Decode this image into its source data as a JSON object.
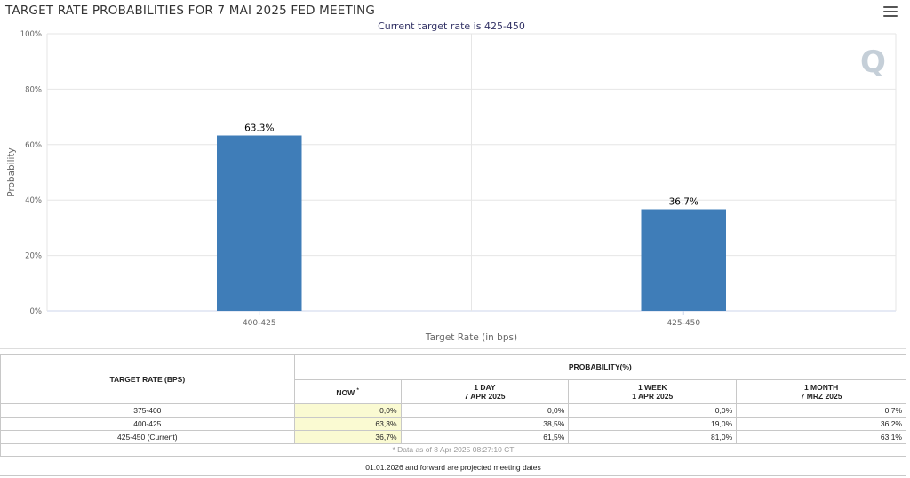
{
  "header": {
    "title": "TARGET RATE PROBABILITIES FOR 7 MAI 2025 FED MEETING",
    "subtitle": "Current target rate is 425-450",
    "menu_icon": "hamburger-menu-icon",
    "logo_letter": "Q"
  },
  "chart_data": {
    "type": "bar",
    "categories": [
      "400-425",
      "425-450"
    ],
    "values": [
      63.3,
      36.7
    ],
    "data_labels": [
      "63.3%",
      "36.7%"
    ],
    "title": "TARGET RATE PROBABILITIES FOR 7 MAI 2025 FED MEETING",
    "subtitle": "Current target rate is 425-450",
    "xlabel": "Target Rate (in bps)",
    "ylabel": "Probability",
    "ylim": [
      0,
      100
    ],
    "yticks": [
      "0%",
      "20%",
      "40%",
      "60%",
      "80%",
      "100%"
    ],
    "ytick_values": [
      0,
      20,
      40,
      60,
      80,
      100
    ],
    "bar_color": "#3f7db8",
    "grid": true
  },
  "table": {
    "col_rate": "TARGET RATE (BPS)",
    "col_prob": "PROBABILITY(%)",
    "sub_headers": [
      {
        "l1": "NOW",
        "l2": ""
      },
      {
        "l1": "1 DAY",
        "l2": "7 APR 2025"
      },
      {
        "l1": "1 WEEK",
        "l2": "1 APR 2025"
      },
      {
        "l1": "1 MONTH",
        "l2": "7 MRZ 2025"
      }
    ],
    "now_marker": "*",
    "rows": [
      {
        "rate": "375-400",
        "now": "0,0%",
        "day": "0,0%",
        "week": "0,0%",
        "month": "0,7%"
      },
      {
        "rate": "400-425",
        "now": "63,3%",
        "day": "38,5%",
        "week": "19,0%",
        "month": "36,2%"
      },
      {
        "rate": "425-450 (Current)",
        "now": "36,7%",
        "day": "61,5%",
        "week": "81,0%",
        "month": "63,1%"
      }
    ],
    "footnote": "* Data as of 8 Apr 2025 08:27:10 CT"
  },
  "bottom_note": "01.01.2026 and forward are projected meeting dates",
  "colors": {
    "bar": "#3f7db8",
    "now_column": "#fafad2",
    "grid": "#e6e6e6"
  }
}
